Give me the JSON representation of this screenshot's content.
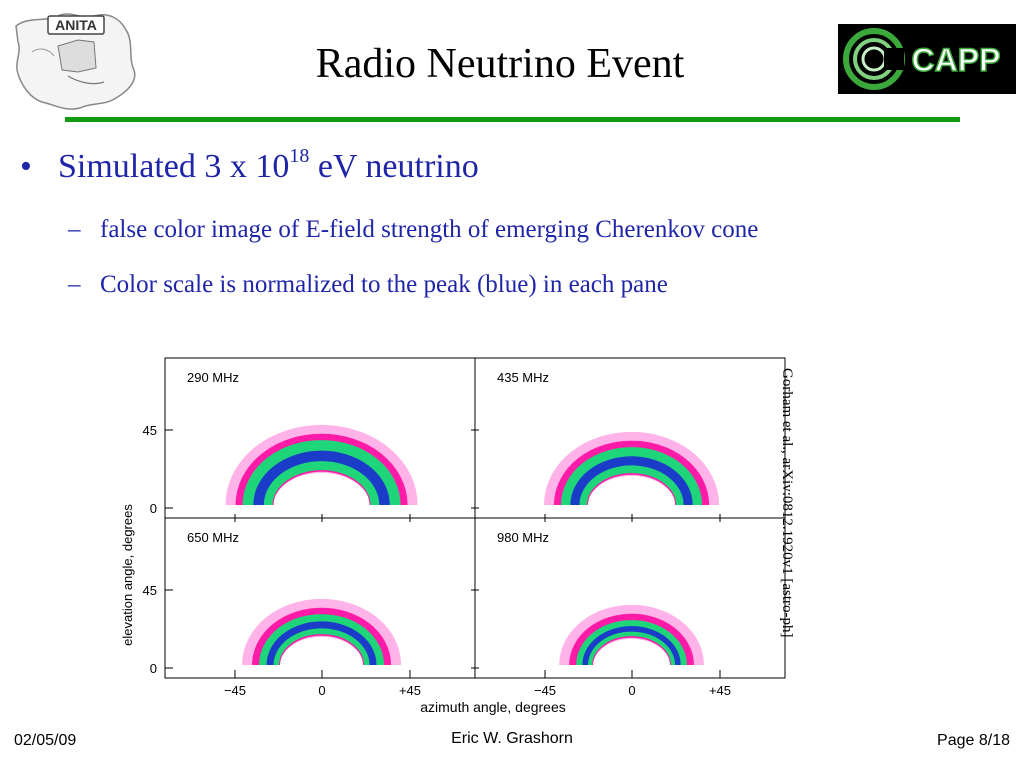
{
  "slide": {
    "title": "Radio Neutrino Event",
    "bullet": {
      "text_before": "Simulated 3 x 10",
      "superscript": "18",
      "text_after": " eV neutrino"
    },
    "sub_bullets": [
      {
        "dash": "–",
        "text": "false color image of E-field strength of emerging Cherenkov cone"
      },
      {
        "dash": "–",
        "text": "Color scale is normalized to the peak (blue) in each pane"
      }
    ],
    "bullet_mark": "•"
  },
  "logos": {
    "left": "ANITA",
    "right": "CCAPP"
  },
  "figure": {
    "panes": [
      {
        "label": "290 MHz"
      },
      {
        "label": "435 MHz"
      },
      {
        "label": "650 MHz"
      },
      {
        "label": "980 MHz"
      }
    ],
    "ylabel": "elevation angle, degrees",
    "xlabel": "azimuth angle, degrees",
    "yticks": [
      "45",
      "0"
    ],
    "xticks": [
      "−45",
      "0",
      "+45"
    ],
    "colors": {
      "peak": "#1a3cc8",
      "mid": "#1fd57a",
      "edge": "#ff1aa8",
      "outer": "#ffb3e8"
    }
  },
  "citation": "Gorham et al., arXiv:0812.1920v1  [astro-ph]",
  "footer": {
    "date": "02/05/09",
    "author": "Eric W. Grashorn",
    "page": "Page 8/18"
  },
  "accent_colors": {
    "text": "#1f25a8",
    "rule": "#119911"
  }
}
